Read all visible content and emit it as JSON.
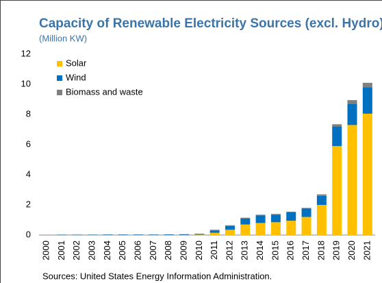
{
  "chart_data": {
    "type": "stacked_bar",
    "title": "Capacity of Renewable Electricity Sources (excl. Hydro)",
    "subtitle": "(Million KW)",
    "source": "Sources: United States Energy Information Administration.",
    "categories": [
      "2000",
      "2001",
      "2002",
      "2003",
      "2004",
      "2005",
      "2006",
      "2007",
      "2008",
      "2009",
      "2010",
      "2011",
      "2012",
      "2013",
      "2014",
      "2015",
      "2016",
      "2017",
      "2018",
      "2019",
      "2020",
      "2021"
    ],
    "series": [
      {
        "name": "Solar",
        "color": "#ffc000",
        "values": [
          0,
          0,
          0,
          0,
          0,
          0,
          0,
          0,
          0,
          0.01,
          0.03,
          0.15,
          0.35,
          0.7,
          0.8,
          0.85,
          0.95,
          1.2,
          2.0,
          5.9,
          7.3,
          8.05
        ]
      },
      {
        "name": "Wind",
        "color": "#0070c0",
        "values": [
          0,
          0.02,
          0.02,
          0.02,
          0.03,
          0.03,
          0.03,
          0.03,
          0.04,
          0.04,
          0.05,
          0.15,
          0.25,
          0.4,
          0.5,
          0.5,
          0.55,
          0.55,
          0.6,
          1.3,
          1.4,
          1.75
        ]
      },
      {
        "name": "Biomass and waste",
        "color": "#808080",
        "values": [
          0.01,
          0.01,
          0.01,
          0.01,
          0.01,
          0.01,
          0.01,
          0.01,
          0.01,
          0.01,
          0.01,
          0.05,
          0.05,
          0.05,
          0.05,
          0.05,
          0.05,
          0.05,
          0.1,
          0.15,
          0.25,
          0.3
        ]
      }
    ],
    "ylim": [
      0,
      12
    ],
    "yticks": [
      0,
      2,
      4,
      6,
      8,
      10,
      12
    ],
    "legend": "top-left"
  }
}
